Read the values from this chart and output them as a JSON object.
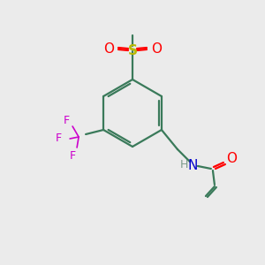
{
  "bg": "#ebebeb",
  "bond_color": "#3a7a5a",
  "atom_colors": {
    "O": "#ff0000",
    "S": "#b8b800",
    "F": "#cc00cc",
    "N": "#0000cc",
    "H": "#7a9a8a"
  },
  "lw": 1.6,
  "lw2": 1.2,
  "figsize": [
    3.0,
    3.0
  ],
  "dpi": 100
}
